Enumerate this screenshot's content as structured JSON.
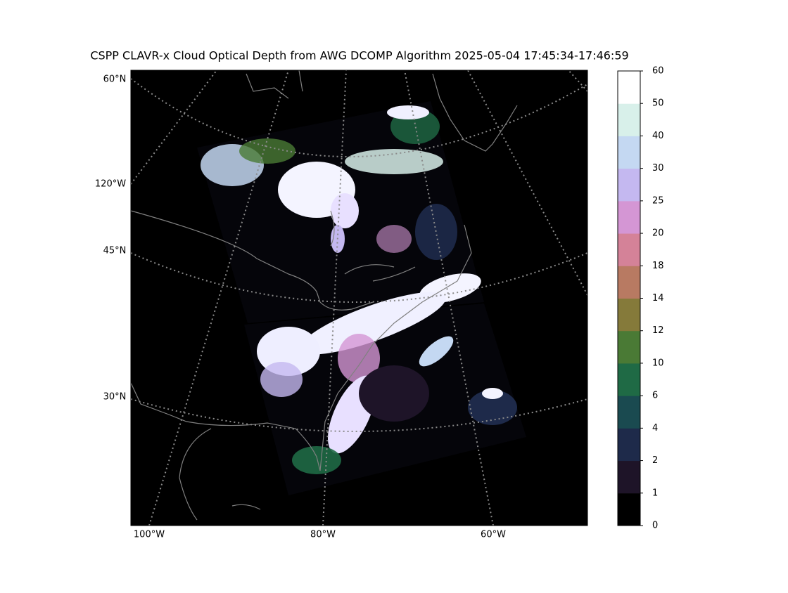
{
  "title": "CSPP CLAVR-x Cloud Optical Depth from AWG DCOMP Algorithm 2025-05-04 17:45:34-17:46:59",
  "map": {
    "lat_labels": [
      "60°N",
      "120°W",
      "45°N",
      "30°N"
    ],
    "lon_labels": [
      "100°W",
      "80°W",
      "60°W"
    ]
  },
  "colorbar": {
    "ticks": [
      0,
      1,
      2,
      4,
      6,
      10,
      12,
      14,
      18,
      20,
      25,
      30,
      40,
      50,
      60
    ],
    "colors": [
      "#000000",
      "#1e1428",
      "#1e2a4a",
      "#1a4a50",
      "#1f6a45",
      "#4a7a35",
      "#857a3a",
      "#b87a62",
      "#d48298",
      "#d496d4",
      "#c4b8f0",
      "#c4d8f2",
      "#d8f0ea",
      "#ffffff"
    ]
  }
}
